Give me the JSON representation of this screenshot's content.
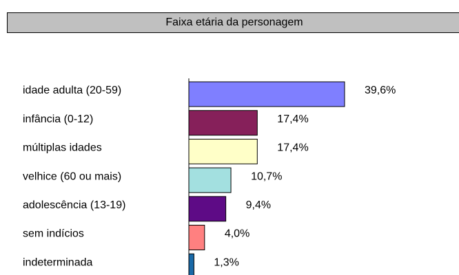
{
  "chart_data": {
    "type": "bar",
    "orientation": "horizontal",
    "title": "Faixa etária da personagem",
    "categories": [
      "idade adulta (20-59)",
      "infância (0-12)",
      "múltiplas idades",
      "velhice (60 ou mais)",
      "adolescência (13-19)",
      "sem indícios",
      "indeterminada"
    ],
    "values": [
      39.6,
      17.4,
      17.4,
      10.7,
      9.4,
      4.0,
      1.3
    ],
    "value_labels": [
      "39,6%",
      "17,4%",
      "17,4%",
      "10,7%",
      "9,4%",
      "4,0%",
      "1,3%"
    ],
    "colors": [
      "#7f7fff",
      "#86205a",
      "#ffffc8",
      "#a3e0e0",
      "#5e0b86",
      "#ff8080",
      "#1a6aa8"
    ]
  }
}
